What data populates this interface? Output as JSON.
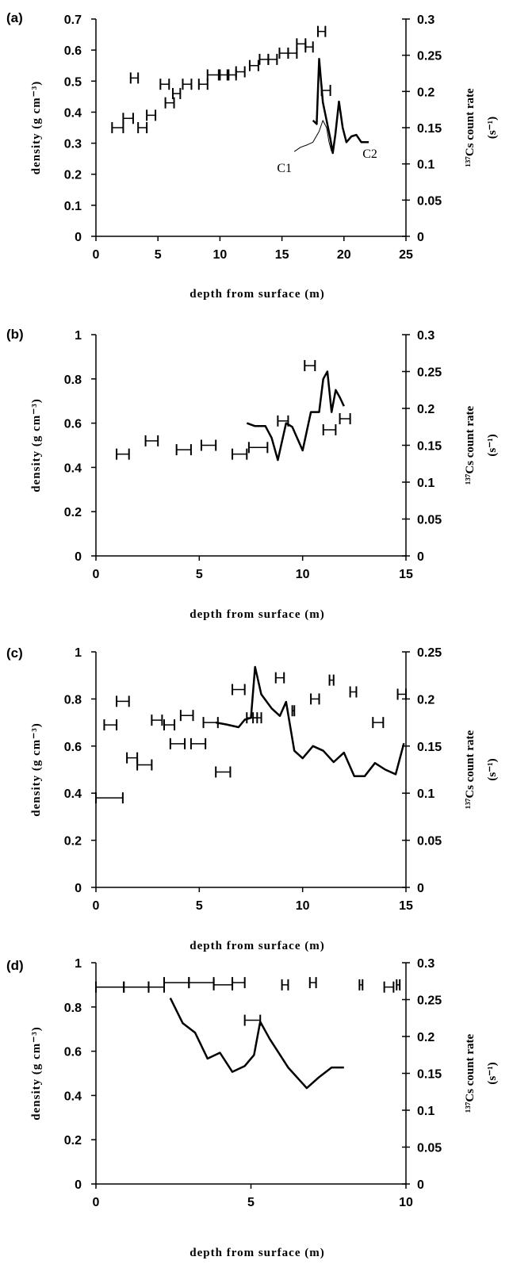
{
  "chart_data": [
    {
      "id": "a",
      "type": "scatter",
      "panel_label": "(a)",
      "xlabel": "depth from surface (m)",
      "ylabel": "density (g cm⁻³)",
      "y2label_main": "¹³⁷Cs count rate",
      "y2label_unit": "(s⁻¹)",
      "xlim": [
        0,
        25
      ],
      "ylim": [
        0,
        0.7
      ],
      "y2lim": [
        0,
        0.3
      ],
      "xticks": [
        "0",
        "5",
        "10",
        "15",
        "20",
        "25"
      ],
      "yticks": [
        "0",
        "0.1",
        "0.2",
        "0.3",
        "0.4",
        "0.5",
        "0.6",
        "0.7"
      ],
      "y2ticks": [
        "0",
        "0.05",
        "0.1",
        "0.15",
        "0.2",
        "0.25",
        "0.3"
      ],
      "density": [
        {
          "x1": 1.3,
          "x2": 2.2,
          "y": 0.35
        },
        {
          "x1": 2.2,
          "x2": 3.0,
          "y": 0.38
        },
        {
          "x1": 2.8,
          "x2": 3.4,
          "y": 0.51
        },
        {
          "x1": 3.4,
          "x2": 4.1,
          "y": 0.35
        },
        {
          "x1": 4.1,
          "x2": 4.8,
          "y": 0.39
        },
        {
          "x1": 5.2,
          "x2": 5.9,
          "y": 0.49
        },
        {
          "x1": 5.6,
          "x2": 6.3,
          "y": 0.43
        },
        {
          "x1": 6.2,
          "x2": 6.8,
          "y": 0.46
        },
        {
          "x1": 7.0,
          "x2": 7.7,
          "y": 0.49
        },
        {
          "x1": 8.3,
          "x2": 9.0,
          "y": 0.49
        },
        {
          "x1": 9.0,
          "x2": 9.9,
          "y": 0.52
        },
        {
          "x1": 10.0,
          "x2": 10.7,
          "y": 0.52
        },
        {
          "x1": 10.6,
          "x2": 11.3,
          "y": 0.52
        },
        {
          "x1": 11.3,
          "x2": 12.0,
          "y": 0.53
        },
        {
          "x1": 12.4,
          "x2": 13.1,
          "y": 0.55
        },
        {
          "x1": 13.2,
          "x2": 13.9,
          "y": 0.57
        },
        {
          "x1": 13.9,
          "x2": 14.6,
          "y": 0.57
        },
        {
          "x1": 14.8,
          "x2": 15.5,
          "y": 0.59
        },
        {
          "x1": 15.5,
          "x2": 16.2,
          "y": 0.59
        },
        {
          "x1": 16.2,
          "x2": 16.9,
          "y": 0.62
        },
        {
          "x1": 16.9,
          "x2": 17.5,
          "y": 0.61
        },
        {
          "x1": 17.9,
          "x2": 18.5,
          "y": 0.66
        },
        {
          "x1": 18.2,
          "x2": 18.9,
          "y": 0.47
        }
      ],
      "cs_lines": [
        {
          "name": "C1",
          "width": 1,
          "x": [
            16.0,
            16.5,
            17.0,
            17.5,
            18.0,
            18.3,
            18.6,
            18.8,
            19.0
          ],
          "y": [
            0.117,
            0.123,
            0.126,
            0.13,
            0.145,
            0.16,
            0.15,
            0.13,
            0.117
          ]
        },
        {
          "name": "C2",
          "width": 2.5,
          "x": [
            17.5,
            17.8,
            18.0,
            18.3,
            18.6,
            18.9,
            19.1,
            19.3,
            19.6,
            19.9,
            20.2,
            20.6,
            21.0,
            21.4,
            21.8,
            22.0
          ],
          "y": [
            0.16,
            0.155,
            0.245,
            0.185,
            0.16,
            0.135,
            0.115,
            0.14,
            0.186,
            0.15,
            0.13,
            0.138,
            0.14,
            0.13,
            0.13,
            0.13
          ]
        }
      ],
      "annotations": [
        {
          "text": "C1",
          "x": 14.6,
          "y2": 0.095
        },
        {
          "text": "C2",
          "x": 21.5,
          "y2": 0.115
        }
      ]
    },
    {
      "id": "b",
      "type": "scatter",
      "panel_label": "(b)",
      "xlabel": "depth from surface (m)",
      "ylabel": "density (g cm⁻³)",
      "y2label_main": "¹³⁷Cs count rate",
      "y2label_unit": "(s⁻¹)",
      "xlim": [
        0,
        15
      ],
      "ylim": [
        0,
        1
      ],
      "y2lim": [
        0,
        0.3
      ],
      "xticks": [
        "0",
        "5",
        "10",
        "15"
      ],
      "yticks": [
        "0",
        "0.2",
        "0.4",
        "0.6",
        "0.8",
        "1"
      ],
      "y2ticks": [
        "0",
        "0.05",
        "0.1",
        "0.15",
        "0.2",
        "0.25",
        "0.3"
      ],
      "density": [
        {
          "x1": 1.0,
          "x2": 1.6,
          "y": 0.46
        },
        {
          "x1": 2.4,
          "x2": 3.0,
          "y": 0.52
        },
        {
          "x1": 3.9,
          "x2": 4.6,
          "y": 0.48
        },
        {
          "x1": 5.1,
          "x2": 5.8,
          "y": 0.5
        },
        {
          "x1": 6.6,
          "x2": 7.3,
          "y": 0.46
        },
        {
          "x1": 7.4,
          "x2": 8.3,
          "y": 0.49
        },
        {
          "x1": 8.8,
          "x2": 9.3,
          "y": 0.61
        },
        {
          "x1": 10.1,
          "x2": 10.6,
          "y": 0.86
        },
        {
          "x1": 11.0,
          "x2": 11.6,
          "y": 0.57
        },
        {
          "x1": 11.8,
          "x2": 12.3,
          "y": 0.62
        }
      ],
      "cs_lines": [
        {
          "name": "",
          "width": 2.5,
          "x": [
            7.3,
            7.7,
            8.2,
            8.5,
            8.8,
            9.2,
            9.5,
            10.0,
            10.4,
            10.8,
            11.0,
            11.2,
            11.4,
            11.6,
            11.8,
            12.0
          ],
          "y": [
            0.18,
            0.176,
            0.176,
            0.16,
            0.13,
            0.18,
            0.175,
            0.143,
            0.195,
            0.195,
            0.24,
            0.25,
            0.195,
            0.225,
            0.215,
            0.203
          ]
        }
      ],
      "annotations": []
    },
    {
      "id": "c",
      "type": "scatter",
      "panel_label": "(c)",
      "xlabel": "depth from surface (m)",
      "ylabel": "density (g cm⁻³)",
      "y2label_main": "¹³⁷Cs count rate",
      "y2label_unit": "(s⁻¹)",
      "xlim": [
        0,
        15
      ],
      "ylim": [
        0,
        1
      ],
      "y2lim": [
        0,
        0.25
      ],
      "xticks": [
        "0",
        "5",
        "10",
        "15"
      ],
      "yticks": [
        "0",
        "0.2",
        "0.4",
        "0.6",
        "0.8",
        "1"
      ],
      "y2ticks": [
        "0",
        "0.05",
        "0.1",
        "0.15",
        "0.2",
        "0.25"
      ],
      "density": [
        {
          "x1": 0.0,
          "x2": 1.3,
          "y": 0.38
        },
        {
          "x1": 0.4,
          "x2": 1.0,
          "y": 0.69
        },
        {
          "x1": 1.0,
          "x2": 1.6,
          "y": 0.79
        },
        {
          "x1": 1.5,
          "x2": 2.0,
          "y": 0.55
        },
        {
          "x1": 2.0,
          "x2": 2.7,
          "y": 0.52
        },
        {
          "x1": 2.7,
          "x2": 3.2,
          "y": 0.71
        },
        {
          "x1": 3.3,
          "x2": 3.8,
          "y": 0.69
        },
        {
          "x1": 3.6,
          "x2": 4.3,
          "y": 0.61
        },
        {
          "x1": 4.1,
          "x2": 4.7,
          "y": 0.73
        },
        {
          "x1": 4.6,
          "x2": 5.3,
          "y": 0.61
        },
        {
          "x1": 5.2,
          "x2": 5.9,
          "y": 0.7
        },
        {
          "x1": 5.8,
          "x2": 6.5,
          "y": 0.49
        },
        {
          "x1": 6.6,
          "x2": 7.2,
          "y": 0.84
        },
        {
          "x1": 7.3,
          "x2": 7.8,
          "y": 0.72
        },
        {
          "x1": 7.6,
          "x2": 8.0,
          "y": 0.72
        },
        {
          "x1": 8.7,
          "x2": 9.1,
          "y": 0.89
        },
        {
          "x1": 9.5,
          "x2": 9.6,
          "y": 0.75
        },
        {
          "x1": 10.4,
          "x2": 10.8,
          "y": 0.8
        },
        {
          "x1": 11.3,
          "x2": 11.5,
          "y": 0.88
        },
        {
          "x1": 12.3,
          "x2": 12.6,
          "y": 0.83
        },
        {
          "x1": 13.4,
          "x2": 13.9,
          "y": 0.7
        },
        {
          "x1": 14.6,
          "x2": 15.0,
          "y": 0.82
        }
      ],
      "cs_lines": [
        {
          "name": "",
          "width": 2.5,
          "x": [
            5.8,
            6.3,
            6.9,
            7.2,
            7.5,
            7.7,
            8.0,
            8.5,
            8.9,
            9.2,
            9.6,
            10.0,
            10.5,
            11.0,
            11.5,
            12.0,
            12.5,
            13.0,
            13.5,
            14.0,
            14.5,
            14.9
          ],
          "y": [
            0.175,
            0.173,
            0.17,
            0.178,
            0.18,
            0.234,
            0.205,
            0.19,
            0.182,
            0.197,
            0.145,
            0.137,
            0.15,
            0.145,
            0.133,
            0.143,
            0.118,
            0.118,
            0.132,
            0.125,
            0.12,
            0.153
          ]
        }
      ],
      "annotations": []
    },
    {
      "id": "d",
      "type": "scatter",
      "panel_label": "(d)",
      "xlabel": "depth from surface (m)",
      "ylabel": "density (g cm⁻³)",
      "y2label_main": "¹³⁷Cs count rate",
      "y2label_unit": "(s⁻¹)",
      "xlim": [
        0,
        10
      ],
      "ylim": [
        0,
        1
      ],
      "y2lim": [
        0,
        0.3
      ],
      "xticks": [
        "0",
        "5",
        "10"
      ],
      "yticks": [
        "0",
        "0.2",
        "0.4",
        "0.6",
        "0.8",
        "1"
      ],
      "y2ticks": [
        "0",
        "0.05",
        "0.1",
        "0.15",
        "0.2",
        "0.25",
        "0.3"
      ],
      "density": [
        {
          "x1": 0.0,
          "x2": 0.9,
          "y": 0.89
        },
        {
          "x1": 0.9,
          "x2": 1.7,
          "y": 0.89
        },
        {
          "x1": 1.7,
          "x2": 2.2,
          "y": 0.89
        },
        {
          "x1": 2.2,
          "x2": 3.0,
          "y": 0.91
        },
        {
          "x1": 3.0,
          "x2": 3.8,
          "y": 0.91
        },
        {
          "x1": 3.8,
          "x2": 4.4,
          "y": 0.9
        },
        {
          "x1": 4.4,
          "x2": 4.8,
          "y": 0.91
        },
        {
          "x1": 4.8,
          "x2": 5.3,
          "y": 0.74
        },
        {
          "x1": 6.0,
          "x2": 6.2,
          "y": 0.9
        },
        {
          "x1": 6.9,
          "x2": 7.1,
          "y": 0.91
        },
        {
          "x1": 8.5,
          "x2": 8.6,
          "y": 0.9
        },
        {
          "x1": 9.3,
          "x2": 9.6,
          "y": 0.89
        },
        {
          "x1": 9.7,
          "x2": 9.8,
          "y": 0.9
        }
      ],
      "cs_lines": [
        {
          "name": "",
          "width": 2.5,
          "x": [
            2.4,
            2.8,
            3.2,
            3.6,
            4.0,
            4.4,
            4.8,
            5.1,
            5.3,
            5.6,
            6.2,
            6.8,
            7.2,
            7.6,
            8.0
          ],
          "y": [
            0.252,
            0.218,
            0.205,
            0.17,
            0.178,
            0.152,
            0.16,
            0.175,
            0.22,
            0.197,
            0.158,
            0.13,
            0.145,
            0.158,
            0.158
          ]
        }
      ],
      "annotations": []
    }
  ]
}
